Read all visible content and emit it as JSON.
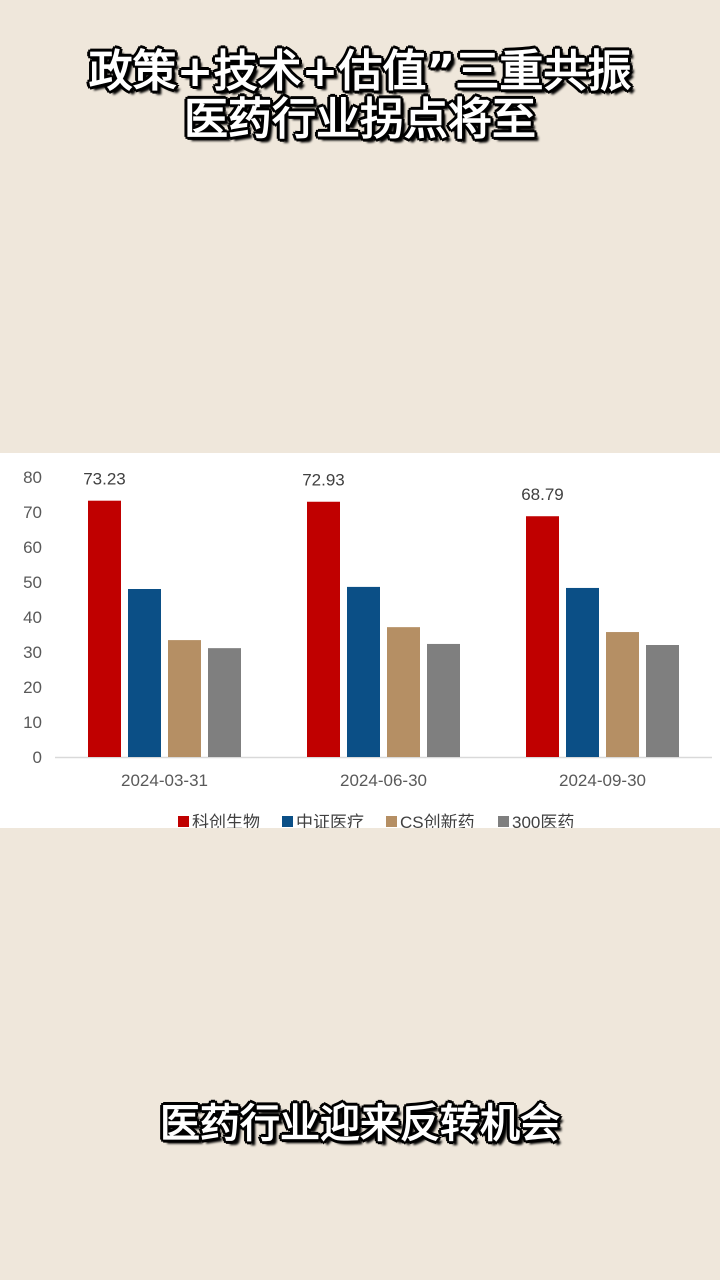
{
  "header": {
    "line1": "政策+技术+估值”三重共振",
    "line2": "医药行业拐点将至"
  },
  "caption": "医药行业迎来反转机会",
  "colors": {
    "background": "#efe7db",
    "科创生物": "#c00000",
    "中证医疗": "#0b4f86",
    "CS创新药": "#b58f64",
    "300医药": "#7f7f7f"
  },
  "chart_data": {
    "type": "bar",
    "categories": [
      "2024-03-31",
      "2024-06-30",
      "2024-09-30"
    ],
    "series": [
      {
        "name": "科创生物",
        "color": "#c00000",
        "values": [
          73.23,
          72.93,
          68.79
        ],
        "labels": [
          "73.23",
          "72.93",
          "68.79"
        ]
      },
      {
        "name": "中证医疗",
        "color": "#0b4f86",
        "values": [
          48.0,
          48.6,
          48.3
        ]
      },
      {
        "name": "CS创新药",
        "color": "#b58f64",
        "values": [
          33.4,
          37.1,
          35.7
        ]
      },
      {
        "name": "300医药",
        "color": "#7f7f7f",
        "values": [
          31.1,
          32.3,
          32.0
        ]
      }
    ],
    "yticks": [
      "0",
      "10",
      "20",
      "30",
      "40",
      "50",
      "60",
      "70",
      "80"
    ],
    "ylim": [
      0,
      80
    ],
    "grid": false,
    "legend": "bottom"
  }
}
